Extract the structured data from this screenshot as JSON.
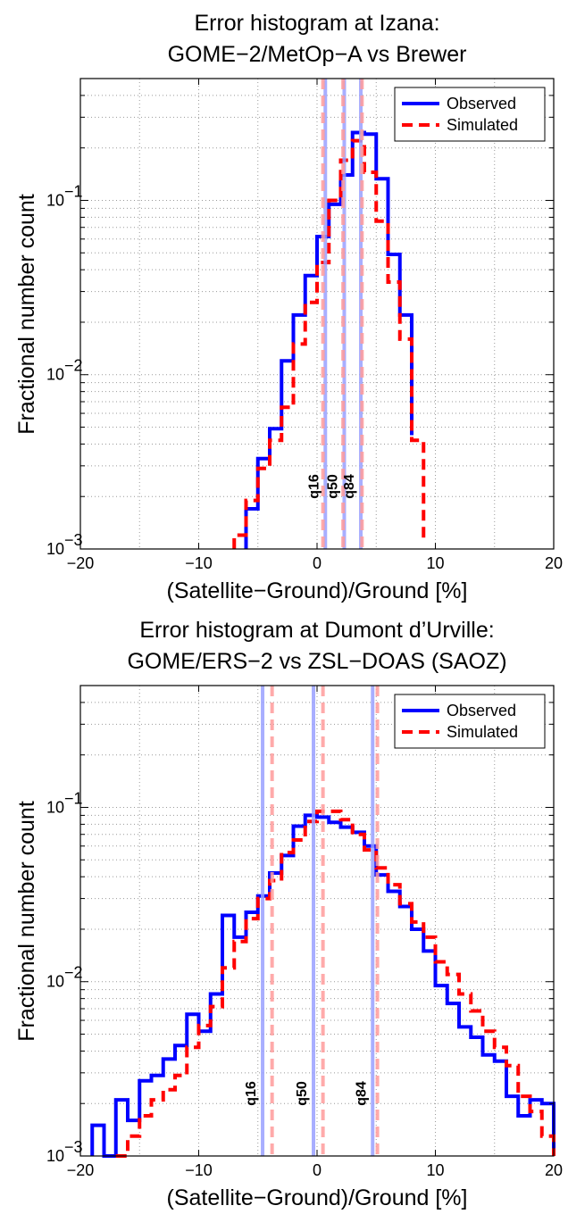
{
  "chart_data": [
    {
      "type": "line",
      "title_lines": [
        "Error histogram at Izana:",
        "GOME−2/MetOp−A vs Brewer"
      ],
      "xlabel": "(Satellite−Ground)/Ground [%]",
      "ylabel": "Fractional number count",
      "xlim": [
        -20,
        20
      ],
      "ylim": [
        0.001,
        0.5
      ],
      "yscale": "log",
      "grid": true,
      "legend_position": "top-right",
      "x_ticks": [
        -20,
        -10,
        0,
        10,
        20
      ],
      "x_tick_labels": [
        "−20",
        "−10",
        "0",
        "10",
        "20"
      ],
      "y_ticks": [
        0.001,
        0.01,
        0.1
      ],
      "y_tick_labels": [
        "10",
        "10",
        "10"
      ],
      "y_tick_exponents": [
        "−3",
        "−2",
        "−1"
      ],
      "series": [
        {
          "name": "Observed",
          "color": "#0000ff",
          "style": "solid",
          "bin_edges": [
            -6,
            -5,
            -4,
            -3,
            -2,
            -1,
            0,
            1,
            2,
            3,
            4,
            5,
            6,
            7,
            8
          ],
          "values": [
            0.0017,
            0.0033,
            0.0049,
            0.012,
            0.022,
            0.037,
            0.062,
            0.095,
            0.14,
            0.245,
            0.24,
            0.133,
            0.049,
            0.022,
            0.0045
          ]
        },
        {
          "name": "Simulated",
          "color": "#ff0000",
          "style": "dashed",
          "bin_edges": [
            -7,
            -6,
            -5,
            -4,
            -3,
            -2,
            -1,
            0,
            1,
            2,
            3,
            4,
            5,
            6,
            7,
            8,
            9
          ],
          "values": [
            0.0012,
            0.0019,
            0.0029,
            0.0042,
            0.0065,
            0.015,
            0.026,
            0.044,
            0.1,
            0.17,
            0.22,
            0.145,
            0.076,
            0.034,
            0.016,
            0.0042,
            0.0011
          ]
        }
      ],
      "quantiles": [
        {
          "label": "q16",
          "observed_x": 0.7,
          "simulated_x": 0.5
        },
        {
          "label": "q50",
          "observed_x": 2.3,
          "simulated_x": 2.2
        },
        {
          "label": "q84",
          "observed_x": 3.7,
          "simulated_x": 3.8
        }
      ],
      "legend": [
        "Observed",
        "Simulated"
      ]
    },
    {
      "type": "line",
      "title_lines": [
        "Error histogram at Dumont d’Urville:",
        "GOME/ERS−2 vs ZSL−DOAS (SAOZ)"
      ],
      "xlabel": "(Satellite−Ground)/Ground [%]",
      "ylabel": "Fractional number count",
      "xlim": [
        -20,
        20
      ],
      "ylim": [
        0.001,
        0.5
      ],
      "yscale": "log",
      "grid": true,
      "legend_position": "top-right",
      "x_ticks": [
        -20,
        -10,
        0,
        10,
        20
      ],
      "x_tick_labels": [
        "−20",
        "−10",
        "0",
        "10",
        "20"
      ],
      "y_ticks": [
        0.001,
        0.01,
        0.1
      ],
      "y_tick_labels": [
        "10",
        "10",
        "10"
      ],
      "y_tick_exponents": [
        "−3",
        "−2",
        "−1"
      ],
      "series": [
        {
          "name": "Observed",
          "color": "#0000ff",
          "style": "solid",
          "bin_edges": [
            -19,
            -18,
            -17,
            -16,
            -15,
            -14,
            -13,
            -12,
            -11,
            -10,
            -9,
            -8,
            -7,
            -6,
            -5,
            -4,
            -3,
            -2,
            -1,
            0,
            1,
            2,
            3,
            4,
            5,
            6,
            7,
            8,
            9,
            10,
            11,
            12,
            13,
            14,
            15,
            16,
            17,
            18,
            19,
            20
          ],
          "values": [
            0.0015,
            0.001,
            0.0021,
            0.0016,
            0.0027,
            0.0029,
            0.0036,
            0.0043,
            0.0065,
            0.0052,
            0.0085,
            0.024,
            0.018,
            0.025,
            0.031,
            0.042,
            0.053,
            0.078,
            0.09,
            0.088,
            0.082,
            0.077,
            0.072,
            0.06,
            0.041,
            0.033,
            0.027,
            0.02,
            0.015,
            0.0095,
            0.0075,
            0.0055,
            0.0048,
            0.0038,
            0.0035,
            0.0022,
            0.0017,
            0.0021,
            0.002
          ]
        },
        {
          "name": "Simulated",
          "color": "#ff0000",
          "style": "dashed",
          "bin_edges": [
            -17,
            -16,
            -15,
            -14,
            -13,
            -12,
            -11,
            -10,
            -9,
            -8,
            -7,
            -6,
            -5,
            -4,
            -3,
            -2,
            -1,
            0,
            1,
            2,
            3,
            4,
            5,
            6,
            7,
            8,
            9,
            10,
            11,
            12,
            13,
            14,
            15,
            16,
            17,
            18,
            19,
            20
          ],
          "values": [
            0.001,
            0.0013,
            0.0017,
            0.0021,
            0.0024,
            0.0029,
            0.0042,
            0.0056,
            0.0072,
            0.012,
            0.017,
            0.023,
            0.03,
            0.038,
            0.055,
            0.065,
            0.083,
            0.095,
            0.095,
            0.085,
            0.07,
            0.057,
            0.045,
            0.036,
            0.028,
            0.022,
            0.018,
            0.013,
            0.011,
            0.0085,
            0.0068,
            0.0052,
            0.0042,
            0.0033,
            0.0022,
            0.0018,
            0.0013
          ]
        }
      ],
      "quantiles": [
        {
          "label": "q16",
          "observed_x": -4.6,
          "simulated_x": -3.8
        },
        {
          "label": "q50",
          "observed_x": -0.3,
          "simulated_x": 0.5
        },
        {
          "label": "q84",
          "observed_x": 4.7,
          "simulated_x": 5.1
        }
      ],
      "legend": [
        "Observed",
        "Simulated"
      ]
    }
  ]
}
